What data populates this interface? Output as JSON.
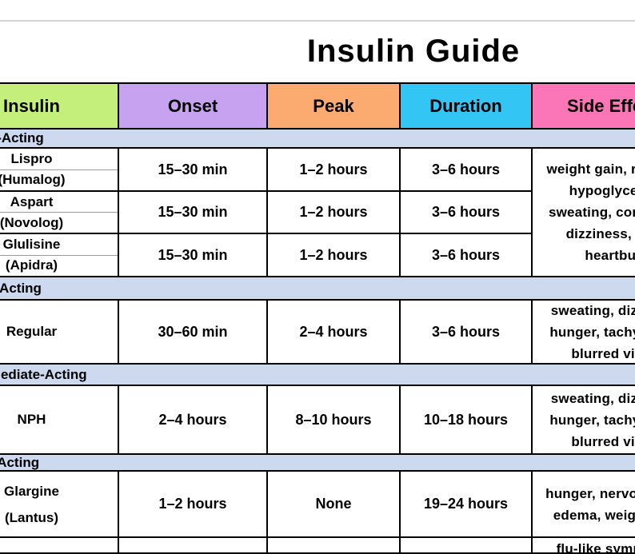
{
  "page": {
    "title": "Insulin Guide"
  },
  "colors": {
    "header_insulin": "#c3ef7a",
    "header_onset": "#c7a2f0",
    "header_peak": "#fbab70",
    "header_duration": "#33c5f4",
    "header_side_effects": "#fa76b6",
    "section_band": "#ccd9ee",
    "table_border": "#000000",
    "top_divider_line": "#d5d5d5"
  },
  "table": {
    "columns": [
      {
        "label": "Insulin"
      },
      {
        "label": "Onset"
      },
      {
        "label": "Peak"
      },
      {
        "label": "Duration"
      },
      {
        "label": "Side Effects"
      }
    ],
    "sections": [
      {
        "header": "Rapid-Acting",
        "rows": [
          {
            "name": "Lispro",
            "brand": "(Humalog)",
            "onset": "15–30 min",
            "peak": "1–2 hours",
            "duration": "3–6 hours"
          },
          {
            "name": "Aspart",
            "brand": "(Novolog)",
            "onset": "15–30 min",
            "peak": "1–2 hours",
            "duration": "3–6 hours"
          },
          {
            "name": "Glulisine",
            "brand": "(Apidra)",
            "onset": "15–30 min",
            "peak": "1–2 hours",
            "duration": "3–6 hours"
          }
        ],
        "side_effects": [
          "weight gain, redness,",
          "hypoglycemia,",
          "sweating, confusion,",
          "dizziness, rash,",
          "heartburn"
        ]
      },
      {
        "header": "Short-Acting",
        "rows": [
          {
            "name": "Regular",
            "onset": "30–60 min",
            "peak": "2–4 hours",
            "duration": "3–6 hours"
          }
        ],
        "side_effects": [
          "sweating, dizziness,",
          "hunger, tachycardia,",
          "blurred vision"
        ]
      },
      {
        "header": "Intermediate-Acting",
        "rows": [
          {
            "name": "NPH",
            "onset": "2–4 hours",
            "peak": "8–10 hours",
            "duration": "10–18 hours"
          }
        ],
        "side_effects": [
          "sweating, dizziness,",
          "hunger, tachycardia,",
          "blurred vision"
        ]
      },
      {
        "header": "Long-Acting",
        "rows": [
          {
            "name": "Glargine",
            "brand": "(Lantus)",
            "onset": "1–2 hours",
            "peak": "None",
            "duration": "19–24 hours"
          }
        ],
        "side_effects": [
          "hunger, nervousness,",
          "edema, weight gain"
        ]
      }
    ],
    "partial_bottom_row": {
      "side_effects": [
        "flu-like symptoms,"
      ]
    }
  }
}
